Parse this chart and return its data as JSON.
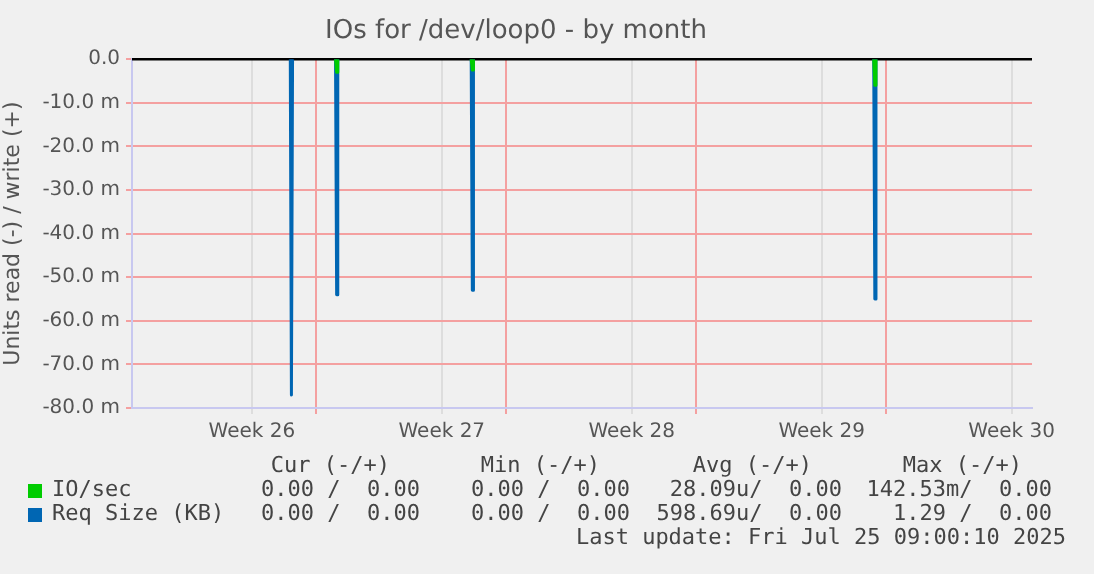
{
  "chart_data": {
    "type": "line",
    "title": "IOs for /dev/loop0 - by month",
    "ylabel": "Units read (-) / write (+)",
    "xlim": [
      "2025-06-23T05:00",
      "2025-07-26T09:00"
    ],
    "xticks": [
      {
        "value": "2025-06-27T15:00",
        "label": "Week 26"
      },
      {
        "value": "2025-06-30T00:00",
        "label": null
      },
      {
        "value": "2025-07-04T15:00",
        "label": "Week 27"
      },
      {
        "value": "2025-07-07T00:00",
        "label": null
      },
      {
        "value": "2025-07-11T15:00",
        "label": "Week 28"
      },
      {
        "value": "2025-07-14T00:00",
        "label": null
      },
      {
        "value": "2025-07-18T15:00",
        "label": "Week 29"
      },
      {
        "value": "2025-07-21T00:00",
        "label": null
      },
      {
        "value": "2025-07-25T15:00",
        "label": "Week 30"
      }
    ],
    "ylim": [
      -80,
      0
    ],
    "yticks": [
      {
        "value": -80,
        "label": "-80.0 m"
      },
      {
        "value": -70,
        "label": "-70.0 m"
      },
      {
        "value": -60,
        "label": "-60.0 m"
      },
      {
        "value": -50,
        "label": "-50.0 m"
      },
      {
        "value": -40,
        "label": "-40.0 m"
      },
      {
        "value": -30,
        "label": "-30.0 m"
      },
      {
        "value": -20,
        "label": "-20.0 m"
      },
      {
        "value": -10,
        "label": "-10.0 m"
      },
      {
        "value": 0,
        "label": "0.0"
      }
    ],
    "grid": true,
    "legend": "bottom",
    "marker": "none",
    "line_style": "solid",
    "series": [
      {
        "name": "IO/sec",
        "color": "#00cc00",
        "x": [
          "2025-06-30T17:00",
          "2025-06-30T18:00",
          "2025-06-30T19:00",
          "2025-07-03T00:00",
          "2025-07-05T17:00",
          "2025-07-05T18:00",
          "2025-07-05T19:00",
          "2025-07-12T00:00",
          "2025-07-20T13:00",
          "2025-07-20T14:00",
          "2025-07-20T15:00"
        ],
        "values": [
          0,
          -3,
          0,
          null,
          0,
          -2.5,
          0,
          null,
          0,
          -6,
          0
        ]
      },
      {
        "name": "Req Size (KB)",
        "color": "#0066b3",
        "x": [
          "2025-06-29T01:00",
          "2025-06-29T02:00",
          "2025-06-29T03:00",
          "2025-06-30T00:00",
          "2025-06-30T17:00",
          "2025-06-30T18:00",
          "2025-06-30T19:00",
          "2025-07-03T00:00",
          "2025-07-05T17:00",
          "2025-07-05T18:00",
          "2025-07-05T19:00",
          "2025-07-12T00:00",
          "2025-07-20T13:00",
          "2025-07-20T14:00",
          "2025-07-20T15:00"
        ],
        "values": [
          0,
          -77,
          0,
          null,
          0,
          -54,
          0,
          null,
          0,
          -53,
          0,
          null,
          0,
          -55,
          0
        ]
      }
    ],
    "ref_lines": [
      {
        "axis": "y",
        "value": 0,
        "color": "#000000"
      }
    ],
    "annotations": [
      "Cur (-/+)",
      "Min (-/+)",
      "Avg (-/+)",
      "Max (-/+)",
      "0.00 /  0.00",
      "0.00 /  0.00",
      "28.09u/  0.00",
      "142.53m/  0.00",
      "0.00 /  0.00",
      "0.00 /  0.00",
      "598.69u/  0.00",
      "1.29 /  0.00",
      "Last update: Fri Jul 25 09:00:10 2025"
    ]
  }
}
